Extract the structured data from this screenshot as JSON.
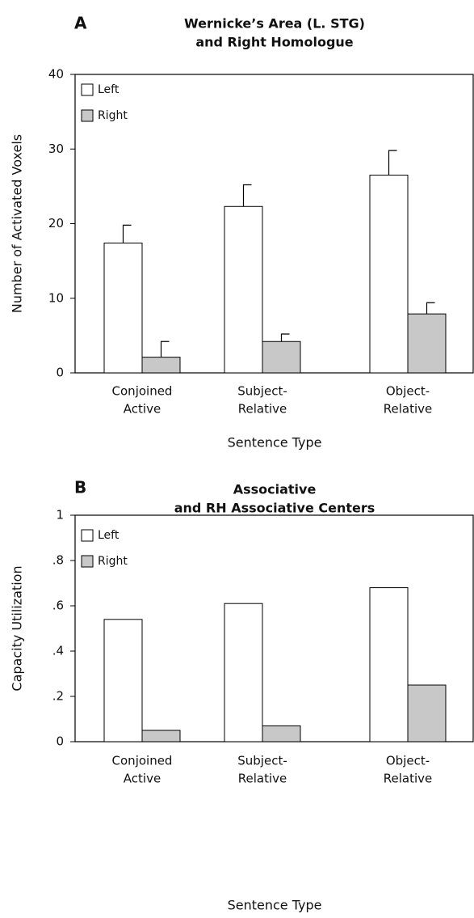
{
  "chart_data": [
    {
      "type": "bar",
      "panel": "A",
      "title": [
        "Wernicke’s Area (L. STG)",
        "and Right Homologue"
      ],
      "ylabel": "Number of Activated Voxels",
      "xlabel": "Sentence Type",
      "categories": [
        [
          "Conjoined",
          "Active"
        ],
        [
          "Subject-",
          "Relative"
        ],
        [
          "Object-",
          "Relative"
        ]
      ],
      "series": [
        {
          "name": "Left",
          "color": "#ffffff",
          "values": [
            17.4,
            22.3,
            26.5
          ],
          "errors": [
            2.4,
            2.9,
            3.3
          ]
        },
        {
          "name": "Right",
          "color": "#c8c8c8",
          "values": [
            2.1,
            4.2,
            7.9
          ],
          "errors": [
            2.1,
            1.0,
            1.5
          ]
        }
      ],
      "ylim": [
        0,
        40
      ],
      "yticks": [
        0,
        10,
        20,
        30,
        40
      ],
      "legend": "upper left"
    },
    {
      "type": "bar",
      "panel": "B",
      "title": [
        "Associative",
        "and RH Associative Centers"
      ],
      "ylabel": "Capacity Utilization",
      "xlabel": "Sentence Type",
      "categories": [
        [
          "Conjoined",
          "Active"
        ],
        [
          "Subject-",
          "Relative"
        ],
        [
          "Object-",
          "Relative"
        ]
      ],
      "series": [
        {
          "name": "Left",
          "color": "#ffffff",
          "values": [
            0.54,
            0.61,
            0.68
          ]
        },
        {
          "name": "Right",
          "color": "#c8c8c8",
          "values": [
            0.05,
            0.07,
            0.25
          ]
        }
      ],
      "ylim": [
        0,
        1
      ],
      "yticks": [
        0,
        {
          "value": 0.2,
          "label": ".2"
        },
        {
          "value": 0.4,
          "label": ".4"
        },
        {
          "value": 0.6,
          "label": ".6"
        },
        {
          "value": 0.8,
          "label": ".8"
        },
        1
      ],
      "legend": "upper left"
    }
  ]
}
